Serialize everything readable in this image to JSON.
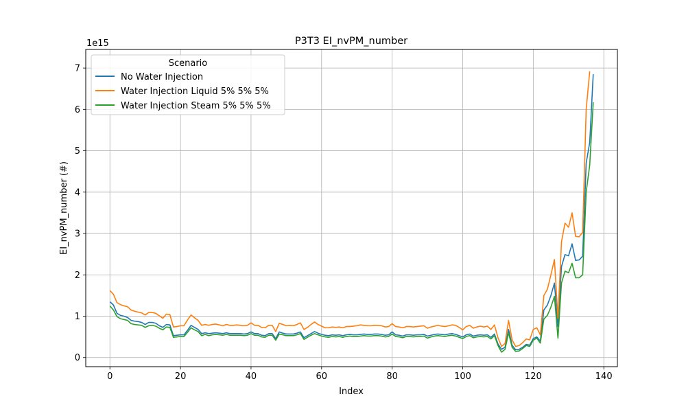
{
  "chart_data": {
    "type": "line",
    "title": "P3T3 EI_nvPM_number",
    "xlabel": "Index",
    "ylabel": "EI_nvPM_number (#)",
    "y_offset_label": "1e15",
    "y_scale": 1000000000000000.0,
    "xlim": [
      -6.85,
      143.85
    ],
    "ylim": [
      -0.22,
      7.45
    ],
    "x_ticks": [
      0,
      20,
      40,
      60,
      80,
      100,
      120,
      140
    ],
    "y_ticks": [
      0,
      1,
      2,
      3,
      4,
      5,
      6,
      7
    ],
    "grid": true,
    "legend": {
      "title": "Scenario",
      "placement": "upper-left"
    },
    "series": [
      {
        "name": "No Water Injection",
        "color": "#1f77b4",
        "values": [
          1.35,
          1.27,
          1.07,
          1.02,
          1.0,
          0.97,
          0.9,
          0.88,
          0.87,
          0.85,
          0.8,
          0.85,
          0.85,
          0.83,
          0.77,
          0.73,
          0.8,
          0.79,
          0.53,
          0.54,
          0.55,
          0.55,
          0.66,
          0.78,
          0.73,
          0.68,
          0.58,
          0.6,
          0.58,
          0.59,
          0.6,
          0.59,
          0.58,
          0.6,
          0.58,
          0.58,
          0.58,
          0.58,
          0.57,
          0.58,
          0.62,
          0.58,
          0.58,
          0.54,
          0.53,
          0.58,
          0.58,
          0.46,
          0.62,
          0.59,
          0.57,
          0.57,
          0.57,
          0.59,
          0.62,
          0.48,
          0.53,
          0.58,
          0.63,
          0.59,
          0.56,
          0.54,
          0.53,
          0.55,
          0.54,
          0.55,
          0.53,
          0.55,
          0.56,
          0.55,
          0.55,
          0.56,
          0.57,
          0.56,
          0.56,
          0.57,
          0.57,
          0.56,
          0.54,
          0.55,
          0.62,
          0.55,
          0.54,
          0.52,
          0.55,
          0.55,
          0.54,
          0.55,
          0.55,
          0.56,
          0.52,
          0.54,
          0.56,
          0.57,
          0.56,
          0.55,
          0.57,
          0.58,
          0.56,
          0.53,
          0.5,
          0.55,
          0.57,
          0.52,
          0.54,
          0.55,
          0.54,
          0.55,
          0.49,
          0.57,
          0.33,
          0.2,
          0.25,
          0.68,
          0.3,
          0.19,
          0.2,
          0.25,
          0.32,
          0.3,
          0.46,
          0.5,
          0.4,
          1.15,
          1.27,
          1.5,
          1.8,
          0.75,
          2.2,
          2.49,
          2.46,
          2.75,
          2.35,
          2.36,
          2.45,
          4.7,
          5.2,
          6.85
        ]
      },
      {
        "name": "Water Injection Liquid 5% 5% 5%",
        "color": "#ff7f0e",
        "values": [
          1.62,
          1.53,
          1.33,
          1.28,
          1.25,
          1.23,
          1.15,
          1.12,
          1.1,
          1.08,
          1.03,
          1.09,
          1.09,
          1.07,
          1.01,
          0.95,
          1.05,
          1.04,
          0.74,
          0.75,
          0.77,
          0.77,
          0.91,
          1.03,
          0.96,
          0.9,
          0.78,
          0.8,
          0.78,
          0.8,
          0.81,
          0.79,
          0.77,
          0.8,
          0.78,
          0.78,
          0.79,
          0.78,
          0.77,
          0.78,
          0.84,
          0.78,
          0.78,
          0.73,
          0.72,
          0.78,
          0.78,
          0.63,
          0.83,
          0.8,
          0.77,
          0.78,
          0.77,
          0.8,
          0.84,
          0.68,
          0.73,
          0.8,
          0.86,
          0.8,
          0.76,
          0.72,
          0.72,
          0.74,
          0.73,
          0.74,
          0.72,
          0.75,
          0.75,
          0.76,
          0.77,
          0.79,
          0.78,
          0.77,
          0.77,
          0.78,
          0.78,
          0.77,
          0.74,
          0.75,
          0.82,
          0.75,
          0.74,
          0.72,
          0.75,
          0.75,
          0.74,
          0.75,
          0.76,
          0.77,
          0.71,
          0.74,
          0.76,
          0.78,
          0.76,
          0.75,
          0.77,
          0.79,
          0.78,
          0.73,
          0.67,
          0.75,
          0.78,
          0.71,
          0.74,
          0.76,
          0.74,
          0.76,
          0.68,
          0.79,
          0.48,
          0.27,
          0.34,
          0.9,
          0.43,
          0.27,
          0.29,
          0.36,
          0.45,
          0.43,
          0.68,
          0.72,
          0.55,
          1.5,
          1.65,
          2.0,
          2.37,
          0.95,
          2.8,
          3.25,
          3.15,
          3.5,
          2.93,
          2.92,
          3.03,
          6.0,
          6.92
        ]
      },
      {
        "name": "Water Injection Steam 5% 5% 5%",
        "color": "#2ca02c",
        "values": [
          1.25,
          1.15,
          0.99,
          0.94,
          0.92,
          0.9,
          0.82,
          0.8,
          0.79,
          0.78,
          0.73,
          0.77,
          0.78,
          0.76,
          0.71,
          0.67,
          0.74,
          0.73,
          0.49,
          0.5,
          0.51,
          0.51,
          0.61,
          0.72,
          0.67,
          0.63,
          0.53,
          0.56,
          0.53,
          0.55,
          0.56,
          0.55,
          0.54,
          0.56,
          0.54,
          0.54,
          0.54,
          0.54,
          0.53,
          0.54,
          0.58,
          0.54,
          0.54,
          0.5,
          0.49,
          0.54,
          0.54,
          0.42,
          0.57,
          0.55,
          0.53,
          0.53,
          0.53,
          0.55,
          0.58,
          0.44,
          0.49,
          0.54,
          0.58,
          0.55,
          0.52,
          0.5,
          0.49,
          0.51,
          0.5,
          0.51,
          0.49,
          0.51,
          0.52,
          0.51,
          0.51,
          0.52,
          0.53,
          0.52,
          0.52,
          0.53,
          0.53,
          0.52,
          0.5,
          0.51,
          0.57,
          0.51,
          0.5,
          0.48,
          0.51,
          0.51,
          0.5,
          0.51,
          0.51,
          0.52,
          0.47,
          0.5,
          0.52,
          0.53,
          0.52,
          0.51,
          0.53,
          0.54,
          0.52,
          0.49,
          0.46,
          0.51,
          0.53,
          0.48,
          0.5,
          0.51,
          0.5,
          0.51,
          0.45,
          0.53,
          0.29,
          0.13,
          0.2,
          0.6,
          0.25,
          0.15,
          0.16,
          0.22,
          0.29,
          0.27,
          0.42,
          0.47,
          0.35,
          0.93,
          1.02,
          1.22,
          1.48,
          0.47,
          1.8,
          2.09,
          2.05,
          2.28,
          1.93,
          1.93,
          2.0,
          4.0,
          4.65,
          6.17
        ]
      }
    ]
  }
}
